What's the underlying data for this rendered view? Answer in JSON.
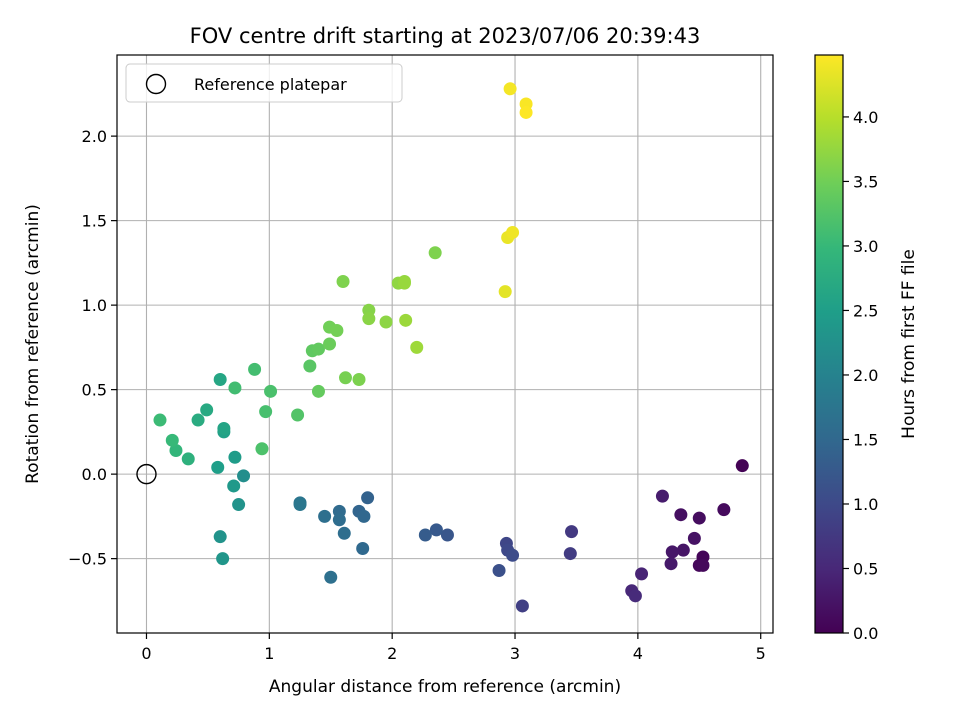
{
  "chart_data": {
    "type": "scatter",
    "title": "FOV centre drift starting at 2023/07/06 20:39:43",
    "xlabel": "Angular distance from reference (arcmin)",
    "ylabel": "Rotation from reference (arcmin)",
    "xlim": [
      -0.24,
      5.1
    ],
    "ylim": [
      -0.94,
      2.48
    ],
    "xticks": [
      0,
      1,
      2,
      3,
      4,
      5
    ],
    "yticks": [
      -0.5,
      0.0,
      0.5,
      1.0,
      1.5,
      2.0
    ],
    "xtick_labels": [
      "0",
      "1",
      "2",
      "3",
      "4",
      "5"
    ],
    "ytick_labels": [
      "−0.5",
      "0.0",
      "0.5",
      "1.0",
      "1.5",
      "2.0"
    ],
    "grid": true,
    "legend": {
      "placement": "top-left",
      "entries": [
        {
          "label": "Reference platepar",
          "marker": "open-circle",
          "color": "#000000"
        }
      ]
    },
    "reference_point": {
      "x": 0,
      "y": 0
    },
    "colorbar": {
      "label": "Hours from first FF file",
      "colormap": "viridis",
      "range": [
        0.0,
        4.48
      ],
      "ticks": [
        0.0,
        0.5,
        1.0,
        1.5,
        2.0,
        2.5,
        3.0,
        3.5,
        4.0
      ],
      "tick_labels": [
        "0.0",
        "0.5",
        "1.0",
        "1.5",
        "2.0",
        "2.5",
        "3.0",
        "3.5",
        "4.0"
      ]
    },
    "colormap_stops": [
      "#440154",
      "#482878",
      "#3e4989",
      "#31688e",
      "#26828e",
      "#1f9e89",
      "#35b779",
      "#6ece58",
      "#b5de2b",
      "#fde725"
    ],
    "series": [
      {
        "points": [
          {
            "x": 4.85,
            "y": 0.05,
            "t": 0.02
          },
          {
            "x": 4.53,
            "y": -0.49,
            "t": 0.05
          },
          {
            "x": 4.5,
            "y": -0.54,
            "t": 0.08
          },
          {
            "x": 4.53,
            "y": -0.54,
            "t": 0.1
          },
          {
            "x": 4.7,
            "y": -0.21,
            "t": 0.12
          },
          {
            "x": 4.5,
            "y": -0.26,
            "t": 0.15
          },
          {
            "x": 4.35,
            "y": -0.24,
            "t": 0.18
          },
          {
            "x": 4.46,
            "y": -0.38,
            "t": 0.22
          },
          {
            "x": 4.37,
            "y": -0.45,
            "t": 0.25
          },
          {
            "x": 4.28,
            "y": -0.46,
            "t": 0.28
          },
          {
            "x": 4.27,
            "y": -0.53,
            "t": 0.3
          },
          {
            "x": 4.2,
            "y": -0.13,
            "t": 0.35
          },
          {
            "x": 4.03,
            "y": -0.59,
            "t": 0.45
          },
          {
            "x": 3.95,
            "y": -0.69,
            "t": 0.5
          },
          {
            "x": 3.98,
            "y": -0.72,
            "t": 0.55
          },
          {
            "x": 3.46,
            "y": -0.34,
            "t": 0.75
          },
          {
            "x": 3.45,
            "y": -0.47,
            "t": 0.8
          },
          {
            "x": 3.06,
            "y": -0.78,
            "t": 0.85
          },
          {
            "x": 2.93,
            "y": -0.41,
            "t": 0.95
          },
          {
            "x": 2.94,
            "y": -0.45,
            "t": 1.0
          },
          {
            "x": 2.98,
            "y": -0.48,
            "t": 1.05
          },
          {
            "x": 2.87,
            "y": -0.57,
            "t": 1.1
          },
          {
            "x": 2.45,
            "y": -0.36,
            "t": 1.2
          },
          {
            "x": 2.36,
            "y": -0.33,
            "t": 1.25
          },
          {
            "x": 2.27,
            "y": -0.36,
            "t": 1.3
          },
          {
            "x": 1.8,
            "y": -0.14,
            "t": 1.4
          },
          {
            "x": 1.73,
            "y": -0.22,
            "t": 1.45
          },
          {
            "x": 1.77,
            "y": -0.25,
            "t": 1.5
          },
          {
            "x": 1.76,
            "y": -0.44,
            "t": 1.52
          },
          {
            "x": 1.57,
            "y": -0.22,
            "t": 1.55
          },
          {
            "x": 1.57,
            "y": -0.27,
            "t": 1.58
          },
          {
            "x": 1.61,
            "y": -0.35,
            "t": 1.6
          },
          {
            "x": 1.45,
            "y": -0.25,
            "t": 1.62
          },
          {
            "x": 1.5,
            "y": -0.61,
            "t": 1.65
          },
          {
            "x": 1.25,
            "y": -0.17,
            "t": 1.75
          },
          {
            "x": 1.25,
            "y": -0.18,
            "t": 1.78
          },
          {
            "x": 0.94,
            "y": 0.15,
            "t": 3.2
          },
          {
            "x": 0.79,
            "y": -0.01,
            "t": 2.2
          },
          {
            "x": 0.75,
            "y": -0.18,
            "t": 2.3
          },
          {
            "x": 0.71,
            "y": -0.07,
            "t": 2.4
          },
          {
            "x": 0.72,
            "y": 0.1,
            "t": 2.45
          },
          {
            "x": 0.58,
            "y": 0.04,
            "t": 2.5
          },
          {
            "x": 0.63,
            "y": 0.25,
            "t": 2.55
          },
          {
            "x": 0.63,
            "y": 0.27,
            "t": 2.6
          },
          {
            "x": 0.6,
            "y": -0.37,
            "t": 2.3
          },
          {
            "x": 0.62,
            "y": -0.5,
            "t": 2.35
          },
          {
            "x": 0.6,
            "y": 0.56,
            "t": 2.65
          },
          {
            "x": 0.49,
            "y": 0.38,
            "t": 2.7
          },
          {
            "x": 0.42,
            "y": 0.32,
            "t": 2.75
          },
          {
            "x": 0.34,
            "y": 0.09,
            "t": 2.85
          },
          {
            "x": 0.24,
            "y": 0.14,
            "t": 2.95
          },
          {
            "x": 0.21,
            "y": 0.2,
            "t": 3.0
          },
          {
            "x": 0.11,
            "y": 0.32,
            "t": 3.05
          },
          {
            "x": 0.72,
            "y": 0.51,
            "t": 3.1
          },
          {
            "x": 0.88,
            "y": 0.62,
            "t": 3.12
          },
          {
            "x": 0.97,
            "y": 0.37,
            "t": 3.15
          },
          {
            "x": 1.01,
            "y": 0.49,
            "t": 3.18
          },
          {
            "x": 1.23,
            "y": 0.35,
            "t": 3.25
          },
          {
            "x": 1.33,
            "y": 0.64,
            "t": 3.3
          },
          {
            "x": 1.35,
            "y": 0.73,
            "t": 3.35
          },
          {
            "x": 1.4,
            "y": 0.74,
            "t": 3.38
          },
          {
            "x": 1.4,
            "y": 0.49,
            "t": 3.4
          },
          {
            "x": 1.49,
            "y": 0.77,
            "t": 3.45
          },
          {
            "x": 1.49,
            "y": 0.87,
            "t": 3.5
          },
          {
            "x": 1.55,
            "y": 0.85,
            "t": 3.52
          },
          {
            "x": 1.62,
            "y": 0.57,
            "t": 3.55
          },
          {
            "x": 1.73,
            "y": 0.56,
            "t": 3.58
          },
          {
            "x": 1.6,
            "y": 1.14,
            "t": 3.6
          },
          {
            "x": 1.81,
            "y": 0.97,
            "t": 3.65
          },
          {
            "x": 1.81,
            "y": 0.92,
            "t": 3.68
          },
          {
            "x": 1.95,
            "y": 0.9,
            "t": 3.7
          },
          {
            "x": 2.05,
            "y": 1.13,
            "t": 3.72
          },
          {
            "x": 2.1,
            "y": 1.14,
            "t": 3.75
          },
          {
            "x": 2.1,
            "y": 1.13,
            "t": 3.78
          },
          {
            "x": 2.11,
            "y": 0.91,
            "t": 3.8
          },
          {
            "x": 2.2,
            "y": 0.75,
            "t": 3.82
          },
          {
            "x": 2.35,
            "y": 1.31,
            "t": 3.6
          },
          {
            "x": 2.92,
            "y": 1.08,
            "t": 4.3
          },
          {
            "x": 2.94,
            "y": 1.4,
            "t": 4.35
          },
          {
            "x": 2.98,
            "y": 1.43,
            "t": 4.38
          },
          {
            "x": 2.96,
            "y": 2.28,
            "t": 4.42
          },
          {
            "x": 3.09,
            "y": 2.19,
            "t": 4.45
          },
          {
            "x": 3.09,
            "y": 2.14,
            "t": 4.48
          }
        ]
      }
    ]
  }
}
